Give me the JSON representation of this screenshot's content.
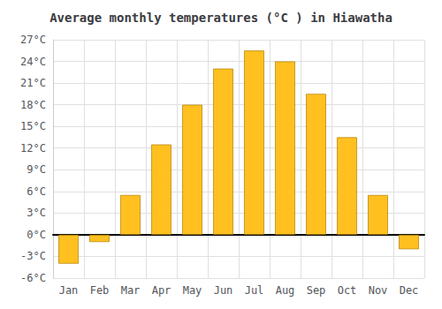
{
  "chart_data": {
    "type": "bar",
    "title": "Average monthly temperatures (°C ) in Hiawatha",
    "categories": [
      "Jan",
      "Feb",
      "Mar",
      "Apr",
      "May",
      "Jun",
      "Jul",
      "Aug",
      "Sep",
      "Oct",
      "Nov",
      "Dec"
    ],
    "values": [
      -4.0,
      -1.0,
      5.5,
      12.5,
      18.0,
      23.0,
      25.5,
      24.0,
      19.5,
      13.5,
      5.5,
      -2.0
    ],
    "color": "#FFC020",
    "ylim": [
      -6,
      27
    ],
    "yticks": [
      {
        "value": -6,
        "label": "-6°C"
      },
      {
        "value": -3,
        "label": "-3°C"
      },
      {
        "value": 0,
        "label": "0°C"
      },
      {
        "value": 3,
        "label": "3°C"
      },
      {
        "value": 6,
        "label": "6°C"
      },
      {
        "value": 9,
        "label": "9°C"
      },
      {
        "value": 12,
        "label": "12°C"
      },
      {
        "value": 15,
        "label": "15°C"
      },
      {
        "value": 18,
        "label": "18°C"
      },
      {
        "value": 21,
        "label": "21°C"
      },
      {
        "value": 24,
        "label": "24°C"
      },
      {
        "value": 27,
        "label": "27°C"
      }
    ],
    "grid": true
  }
}
